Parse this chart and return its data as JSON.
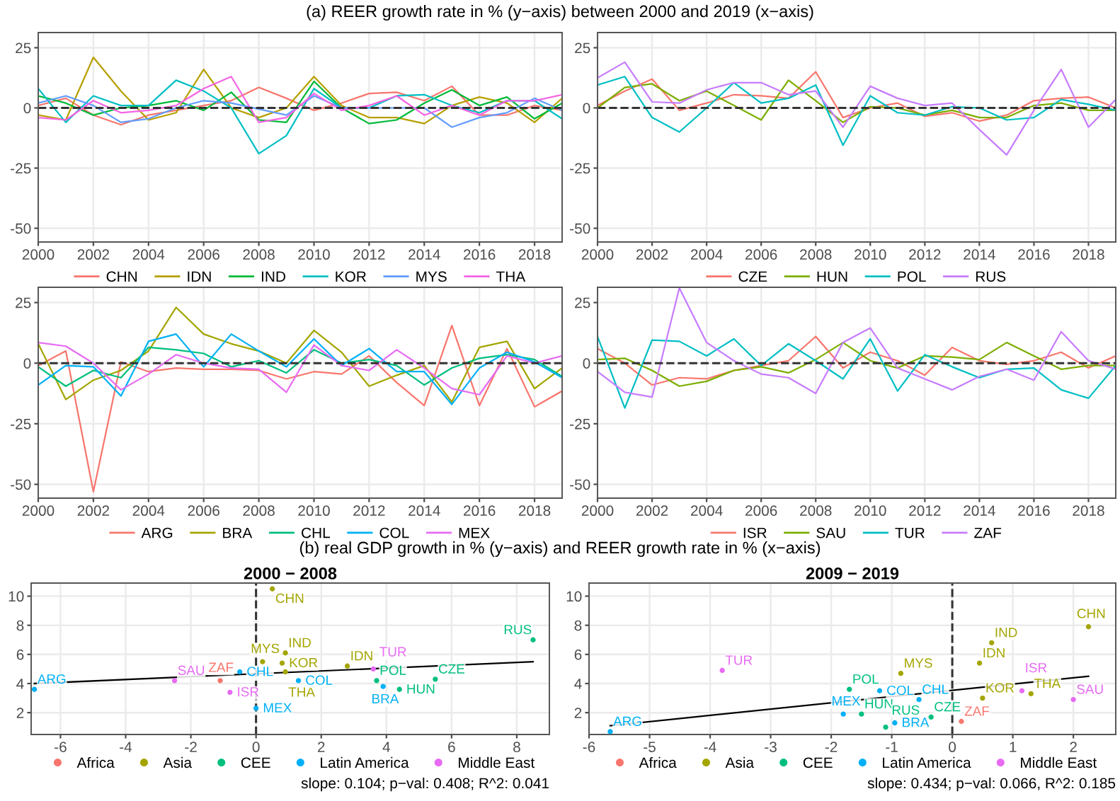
{
  "chart_data": [
    {
      "type": "line",
      "title": "(a) REER growth rate in % (y−axis) between 2000 and 2019 (x−axis)",
      "x": [
        2000,
        2001,
        2002,
        2003,
        2004,
        2005,
        2006,
        2007,
        2008,
        2009,
        2010,
        2011,
        2012,
        2013,
        2014,
        2015,
        2016,
        2017,
        2018,
        2019
      ],
      "xlim": [
        2000,
        2019
      ],
      "xticks": [
        2000,
        2002,
        2004,
        2006,
        2008,
        2010,
        2012,
        2014,
        2016,
        2018
      ],
      "ylim": [
        -55.7,
        31.3
      ],
      "yticks": [
        -50,
        -25,
        0,
        25
      ],
      "grid": true,
      "legend": "bottom",
      "ref_lines": [
        {
          "axis": "y",
          "value": 0,
          "color": "#333333",
          "line_style": "dashed"
        }
      ],
      "series": [
        {
          "name": "CHN",
          "color": "#F8766D",
          "values": [
            1,
            4,
            -3,
            -7,
            -3,
            -1,
            1,
            3,
            8.5,
            4,
            -1,
            2,
            6,
            6.5,
            3,
            9,
            -3,
            -3,
            1,
            -1
          ]
        },
        {
          "name": "IDN",
          "color": "#B79F00",
          "values": [
            -3,
            -5,
            21,
            7,
            -5,
            -2,
            16,
            0,
            -4,
            0,
            13,
            1,
            -4,
            -4,
            -6.5,
            1,
            4.5,
            2,
            -6,
            4
          ]
        },
        {
          "name": "IND",
          "color": "#00BA38",
          "values": [
            5,
            2,
            -3,
            0,
            1,
            3,
            -1,
            6.5,
            -5,
            -6,
            11,
            0,
            -6.5,
            -5,
            2,
            7.5,
            1,
            4.5,
            -4.5,
            2
          ]
        },
        {
          "name": "KOR",
          "color": "#00BFC4",
          "values": [
            8,
            -6,
            5,
            1,
            1,
            11.5,
            7,
            0,
            -19,
            -11.5,
            8,
            0,
            0,
            5,
            5.5,
            1,
            -2,
            3,
            3,
            -4.5
          ]
        },
        {
          "name": "MYS",
          "color": "#619CFF",
          "values": [
            2,
            5,
            1,
            -6,
            -4.5,
            0,
            3,
            2,
            -0.5,
            -3,
            5,
            0,
            0,
            0,
            0,
            -8,
            -4,
            -2,
            4,
            -1
          ]
        },
        {
          "name": "THA",
          "color": "#F564E3",
          "values": [
            -4,
            -5,
            3,
            -2,
            -1,
            1,
            8,
            13,
            -6,
            -4,
            6,
            -1,
            1,
            5,
            -3,
            1,
            -3,
            3,
            3,
            5.5
          ]
        }
      ]
    },
    {
      "type": "line",
      "x": [
        2000,
        2001,
        2002,
        2003,
        2004,
        2005,
        2006,
        2007,
        2008,
        2009,
        2010,
        2011,
        2012,
        2013,
        2014,
        2015,
        2016,
        2017,
        2018,
        2019
      ],
      "xlim": [
        2000,
        2019
      ],
      "xticks": [
        2000,
        2002,
        2004,
        2006,
        2008,
        2010,
        2012,
        2014,
        2016,
        2018
      ],
      "ylim": [
        -55.7,
        31.3
      ],
      "yticks": [
        -50,
        -25,
        0,
        25
      ],
      "grid": true,
      "legend": "bottom",
      "ref_lines": [
        {
          "axis": "y",
          "value": 0,
          "color": "#333333",
          "line_style": "dashed"
        }
      ],
      "series": [
        {
          "name": "CZE",
          "color": "#F8766D",
          "values": [
            1,
            7,
            12,
            -1,
            2,
            5.5,
            5,
            4,
            15,
            -4,
            0,
            2,
            -3.5,
            -2,
            -5.5,
            -3,
            3,
            4,
            4.5,
            0
          ]
        },
        {
          "name": "HUN",
          "color": "#7CAE00",
          "values": [
            0,
            8.5,
            10,
            3,
            7,
            1,
            -5,
            11.5,
            3,
            -6,
            0.5,
            0,
            -3,
            -1,
            -4,
            -4,
            1,
            2,
            -1,
            -1
          ]
        },
        {
          "name": "POL",
          "color": "#00BFC4",
          "values": [
            9.5,
            13,
            -4,
            -10,
            0,
            10.5,
            2,
            4,
            9.5,
            -15.5,
            5,
            -2,
            -3,
            0.5,
            0,
            -5,
            -4,
            3.5,
            1.5,
            -1
          ]
        },
        {
          "name": "RUS",
          "color": "#C77CFF",
          "values": [
            12.5,
            19,
            2.5,
            2,
            7.5,
            10.5,
            10.5,
            5.5,
            7,
            -8,
            9,
            4,
            1,
            2,
            -9,
            -19.5,
            -1,
            16,
            -8,
            3.5
          ]
        }
      ]
    },
    {
      "type": "line",
      "x": [
        2000,
        2001,
        2002,
        2003,
        2004,
        2005,
        2006,
        2007,
        2008,
        2009,
        2010,
        2011,
        2012,
        2013,
        2014,
        2015,
        2016,
        2017,
        2018,
        2019
      ],
      "xlim": [
        2000,
        2019
      ],
      "xticks": [
        2000,
        2002,
        2004,
        2006,
        2008,
        2010,
        2012,
        2014,
        2016,
        2018
      ],
      "ylim": [
        -55.7,
        31.3
      ],
      "yticks": [
        -50,
        -25,
        0,
        25
      ],
      "grid": true,
      "legend": "bottom",
      "ref_lines": [
        {
          "axis": "y",
          "value": 0,
          "color": "#333333",
          "line_style": "dashed"
        }
      ],
      "series": [
        {
          "name": "ARG",
          "color": "#F8766D",
          "values": [
            -1,
            5,
            -53,
            0.5,
            -3.5,
            -2,
            -2.5,
            -2.5,
            -3,
            -6.5,
            -3.5,
            -4.5,
            3,
            -8,
            -17.5,
            15.5,
            -17.5,
            6,
            -18,
            -11.5
          ]
        },
        {
          "name": "BRA",
          "color": "#A3A500",
          "values": [
            8,
            -15,
            -7,
            -3,
            5,
            23,
            12,
            8,
            5,
            0,
            13.5,
            4.5,
            -9.5,
            -5,
            -1,
            -16,
            6.5,
            9,
            -10.5,
            -2
          ]
        },
        {
          "name": "CHL",
          "color": "#00BF7D",
          "values": [
            -1.5,
            -9.5,
            -3,
            -6,
            6.5,
            5.5,
            4,
            -1.5,
            1,
            -4,
            5.5,
            0,
            1.5,
            -1,
            -9,
            -2,
            2,
            3.5,
            1.5,
            -5.5
          ]
        },
        {
          "name": "COL",
          "color": "#00B0F6",
          "values": [
            -9,
            -1,
            -1.5,
            -13.5,
            9,
            12,
            -1.5,
            12,
            5,
            -1.5,
            10,
            -1,
            6,
            -3.5,
            -3.5,
            -17,
            -2,
            4.5,
            0.5,
            -6
          ]
        },
        {
          "name": "MEX",
          "color": "#E76BF3",
          "values": [
            8.5,
            7,
            0,
            -11,
            -4.5,
            3.5,
            0,
            -2,
            -2.5,
            -12,
            7.5,
            -1,
            -3,
            5.5,
            -2,
            -10.5,
            -13,
            3,
            0,
            3
          ]
        }
      ]
    },
    {
      "type": "line",
      "x": [
        2000,
        2001,
        2002,
        2003,
        2004,
        2005,
        2006,
        2007,
        2008,
        2009,
        2010,
        2011,
        2012,
        2013,
        2014,
        2015,
        2016,
        2017,
        2018,
        2019
      ],
      "xlim": [
        2000,
        2019
      ],
      "xticks": [
        2000,
        2002,
        2004,
        2006,
        2008,
        2010,
        2012,
        2014,
        2016,
        2018
      ],
      "ylim": [
        -55.7,
        31.3
      ],
      "yticks": [
        -50,
        -25,
        0,
        25
      ],
      "grid": true,
      "legend": "bottom",
      "ref_lines": [
        {
          "axis": "y",
          "value": 0,
          "color": "#333333",
          "line_style": "dashed"
        }
      ],
      "series": [
        {
          "name": "ISR",
          "color": "#F8766D",
          "values": [
            6,
            0,
            -9,
            -6,
            -6.5,
            -3,
            -1,
            1,
            11,
            -2,
            4.5,
            1,
            -5,
            6.5,
            1,
            -0.5,
            1,
            4.5,
            -2,
            3
          ]
        },
        {
          "name": "SAU",
          "color": "#7CAE00",
          "values": [
            1.5,
            2,
            -3,
            -9.5,
            -7.5,
            -3,
            -1.5,
            -4,
            1.5,
            8.5,
            1,
            -2,
            3,
            2.5,
            1.5,
            8.5,
            3,
            -2.5,
            -1,
            -1
          ]
        },
        {
          "name": "TUR",
          "color": "#00BFC4",
          "values": [
            11,
            -18.5,
            9.5,
            9,
            3,
            10,
            -1,
            8,
            1,
            -6.5,
            10,
            -11.5,
            3.5,
            -1.5,
            -6,
            -2.5,
            -2,
            -11,
            -14.5,
            -1
          ]
        },
        {
          "name": "ZAF",
          "color": "#C77CFF",
          "values": [
            -3.5,
            -12,
            -14,
            31,
            8.5,
            1,
            -4.5,
            -6,
            -12.5,
            8.5,
            14.5,
            -2,
            -6.5,
            -11,
            -5.5,
            -2.5,
            -7,
            13,
            1,
            -2.5
          ]
        }
      ]
    },
    {
      "type": "scatter",
      "title": "(b) real GDP growth in % (y−axis) and REER growth rate in % (x−axis)",
      "subtitle": "2000 − 2008",
      "xlim": [
        -6.9,
        9.0
      ],
      "xticks": [
        -6,
        -4,
        -2,
        0,
        2,
        4,
        6,
        8
      ],
      "ylim": [
        0.5,
        10.9
      ],
      "yticks": [
        2,
        4,
        6,
        8,
        10
      ],
      "grid": true,
      "legend": "bottom",
      "marker": "circle",
      "annotations": [
        "slope: 0.104; p−val: 0.408; R^2: 0.041"
      ],
      "ref_lines": [
        {
          "axis": "x",
          "value": 0,
          "color": "#333333",
          "line_style": "dashed"
        }
      ],
      "series": [
        {
          "name": "Africa",
          "color": "#F8766D",
          "x": [
            -1.1
          ],
          "values": [
            4.2
          ],
          "value_labels": [
            "ZAF"
          ]
        },
        {
          "name": "Asia",
          "color": "#A3A500",
          "x": [
            0.5,
            0.9,
            0.2,
            0.8,
            0.9,
            2.8
          ],
          "values": [
            10.5,
            6.1,
            5.5,
            5.4,
            4.8,
            5.2
          ],
          "value_labels": [
            "CHN",
            "IND",
            "MYS",
            "KOR",
            "THA",
            "IDN"
          ]
        },
        {
          "name": "CEE",
          "color": "#00BF7D",
          "x": [
            8.5,
            3.7,
            4.4,
            5.5
          ],
          "values": [
            7.0,
            4.2,
            3.6,
            4.3
          ],
          "value_labels": [
            "RUS",
            "POL",
            "HUN",
            "CZE"
          ]
        },
        {
          "name": "Latin America",
          "color": "#00B0F6",
          "x": [
            -0.5,
            -6.8,
            0.0,
            1.3,
            3.9
          ],
          "values": [
            4.8,
            3.6,
            2.3,
            4.2,
            3.8
          ],
          "value_labels": [
            "CHL",
            "ARG",
            "MEX",
            "COL",
            "BRA"
          ]
        },
        {
          "name": "Middle East",
          "color": "#E76BF3",
          "x": [
            3.6,
            -2.5,
            -0.8
          ],
          "values": [
            5.0,
            4.2,
            3.4
          ],
          "value_labels": [
            "TUR",
            "SAU",
            "ISR"
          ]
        },
        {
          "type": "line",
          "marker": "none",
          "color": "#000000",
          "x": [
            -6.8,
            8.5
          ],
          "values": [
            4.0,
            5.5
          ]
        }
      ]
    },
    {
      "type": "scatter",
      "subtitle": "2009 − 2019",
      "xlim": [
        -6.0,
        2.7
      ],
      "xticks": [
        -6,
        -5,
        -4,
        -3,
        -2,
        -1,
        0,
        1,
        2
      ],
      "ylim": [
        0.5,
        10.9
      ],
      "yticks": [
        2,
        4,
        6,
        8,
        10
      ],
      "grid": true,
      "legend": "bottom",
      "marker": "circle",
      "annotations": [
        "slope: 0.434; p−val: 0.066, R^2: 0.185"
      ],
      "ref_lines": [
        {
          "axis": "x",
          "value": 0,
          "color": "#333333",
          "line_style": "dashed"
        }
      ],
      "series": [
        {
          "name": "Africa",
          "color": "#F8766D",
          "x": [
            0.15
          ],
          "values": [
            1.4
          ],
          "value_labels": [
            "ZAF"
          ]
        },
        {
          "name": "Asia",
          "color": "#A3A500",
          "x": [
            -0.85,
            0.65,
            0.45,
            2.25,
            0.5,
            1.3
          ],
          "values": [
            4.7,
            6.8,
            5.4,
            7.9,
            3.0,
            3.3
          ],
          "value_labels": [
            "MYS",
            "IND",
            "IDN",
            "CHN",
            "KOR",
            "THA"
          ]
        },
        {
          "name": "CEE",
          "color": "#00BF7D",
          "x": [
            -0.35,
            -1.7,
            -1.5,
            -1.1
          ],
          "values": [
            1.7,
            3.6,
            1.9,
            1.0
          ],
          "value_labels": [
            "CZE",
            "POL",
            "HUN",
            "RUS"
          ]
        },
        {
          "name": "Latin America",
          "color": "#00B0F6",
          "x": [
            -0.55,
            -1.2,
            -1.8,
            -0.95,
            -5.65
          ],
          "values": [
            2.9,
            3.5,
            1.9,
            1.3,
            0.7
          ],
          "value_labels": [
            "CHL",
            "COL",
            "MEX",
            "BRA",
            "ARG"
          ]
        },
        {
          "name": "Middle East",
          "color": "#E76BF3",
          "x": [
            -3.8,
            1.15,
            2.0
          ],
          "values": [
            4.9,
            3.5,
            2.9
          ],
          "value_labels": [
            "TUR",
            "ISR",
            "SAU"
          ]
        },
        {
          "type": "line",
          "marker": "none",
          "color": "#000000",
          "x": [
            -5.65,
            2.25
          ],
          "values": [
            1.1,
            4.5
          ]
        }
      ]
    }
  ]
}
